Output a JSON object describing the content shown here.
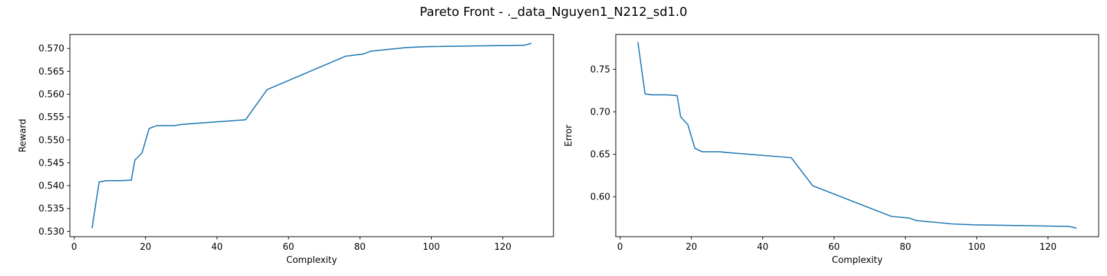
{
  "suptitle": "Pareto Front - ._data_Nguyen1_N212_sd1.0",
  "chart_data": [
    {
      "type": "line",
      "title": "",
      "xlabel": "Complexity",
      "ylabel": "Reward",
      "xlim": [
        -1.2,
        134.2
      ],
      "ylim": [
        0.52885,
        0.57305
      ],
      "xticks": [
        0,
        20,
        40,
        60,
        80,
        100,
        120
      ],
      "yticks": [
        0.53,
        0.535,
        0.54,
        0.545,
        0.55,
        0.555,
        0.56,
        0.565,
        0.57
      ],
      "xtick_labels": [
        "0",
        "20",
        "40",
        "60",
        "80",
        "100",
        "120"
      ],
      "ytick_labels": [
        "0.530",
        "0.535",
        "0.540",
        "0.545",
        "0.550",
        "0.555",
        "0.560",
        "0.565",
        "0.570"
      ],
      "grid": false,
      "color": "#1f77b4",
      "series": [
        {
          "x": [
            5,
            7,
            9,
            13,
            16,
            17,
            19,
            21,
            23,
            28,
            30,
            48,
            54,
            76,
            81,
            83,
            93,
            99,
            126,
            128
          ],
          "y": [
            0.5307,
            0.5408,
            0.5411,
            0.5411,
            0.5412,
            0.5456,
            0.5472,
            0.5525,
            0.5531,
            0.5531,
            0.5534,
            0.5544,
            0.561,
            0.5683,
            0.5688,
            0.5694,
            0.5702,
            0.5704,
            0.5707,
            0.5711
          ]
        }
      ]
    },
    {
      "type": "line",
      "title": "",
      "xlabel": "Complexity",
      "ylabel": "Error",
      "xlim": [
        -1.2,
        134.2
      ],
      "ylim": [
        0.553,
        0.791
      ],
      "xticks": [
        0,
        20,
        40,
        60,
        80,
        100,
        120
      ],
      "yticks": [
        0.6,
        0.65,
        0.7,
        0.75
      ],
      "xtick_labels": [
        "0",
        "20",
        "40",
        "60",
        "80",
        "100",
        "120"
      ],
      "ytick_labels": [
        "0.60",
        "0.65",
        "0.70",
        "0.75"
      ],
      "grid": false,
      "color": "#1f77b4",
      "series": [
        {
          "x": [
            5,
            7,
            9,
            13,
            16,
            17,
            19,
            21,
            23,
            28,
            30,
            48,
            54,
            76,
            81,
            83,
            93,
            99,
            126,
            128
          ],
          "y": [
            0.782,
            0.721,
            0.72,
            0.72,
            0.719,
            0.694,
            0.685,
            0.657,
            0.653,
            0.653,
            0.652,
            0.646,
            0.613,
            0.577,
            0.575,
            0.572,
            0.568,
            0.567,
            0.565,
            0.563
          ]
        }
      ]
    }
  ]
}
